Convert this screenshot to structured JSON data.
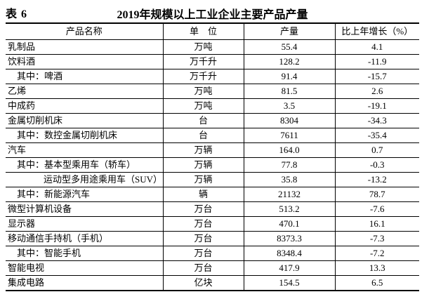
{
  "colors": {
    "text": "#000000",
    "background": "#ffffff",
    "border": "#000000"
  },
  "header": {
    "table_label": "表 6",
    "title": "2019年规模以上工业企业主要产品产量"
  },
  "columns": {
    "product": "产品名称",
    "unit": "单　位",
    "output": "产量",
    "growth": "比上年增长（%）"
  },
  "rows": [
    {
      "name": "乳制品",
      "indent": 0,
      "unit": "万吨",
      "output": "55.4",
      "growth": "4.1"
    },
    {
      "name": "饮料酒",
      "indent": 0,
      "unit": "万千升",
      "output": "128.2",
      "growth": "-11.9"
    },
    {
      "name": "其中：啤酒",
      "indent": 1,
      "unit": "万千升",
      "output": "91.4",
      "growth": "-15.7"
    },
    {
      "name": "乙烯",
      "indent": 0,
      "unit": "万吨",
      "output": "81.5",
      "growth": "2.6"
    },
    {
      "name": "中成药",
      "indent": 0,
      "unit": "万吨",
      "output": "3.5",
      "growth": "-19.1"
    },
    {
      "name": "金属切削机床",
      "indent": 0,
      "unit": "台",
      "output": "8304",
      "growth": "-34.3"
    },
    {
      "name": "其中：数控金属切削机床",
      "indent": 1,
      "unit": "台",
      "output": "7611",
      "growth": "-35.4"
    },
    {
      "name": "汽车",
      "indent": 0,
      "unit": "万辆",
      "output": "164.0",
      "growth": "0.7"
    },
    {
      "name": "其中：基本型乘用车（轿车）",
      "indent": 1,
      "unit": "万辆",
      "output": "77.8",
      "growth": "-0.3"
    },
    {
      "name": "运动型多用途乘用车（SUV）",
      "indent": 2,
      "unit": "万辆",
      "output": "35.8",
      "growth": "-13.2"
    },
    {
      "name": "其中：新能源汽车",
      "indent": 1,
      "unit": "辆",
      "output": "21132",
      "growth": "78.7"
    },
    {
      "name": "微型计算机设备",
      "indent": 0,
      "unit": "万台",
      "output": "513.2",
      "growth": "-7.6"
    },
    {
      "name": "显示器",
      "indent": 0,
      "unit": "万台",
      "output": "470.1",
      "growth": "16.1"
    },
    {
      "name": "移动通信手持机（手机）",
      "indent": 0,
      "unit": "万台",
      "output": "8373.3",
      "growth": "-7.3"
    },
    {
      "name": "其中：智能手机",
      "indent": 1,
      "unit": "万台",
      "output": "8348.4",
      "growth": "-7.2"
    },
    {
      "name": "智能电视",
      "indent": 0,
      "unit": "万台",
      "output": "417.9",
      "growth": "13.3"
    },
    {
      "name": "集成电路",
      "indent": 0,
      "unit": "亿块",
      "output": "154.5",
      "growth": "6.5"
    }
  ]
}
